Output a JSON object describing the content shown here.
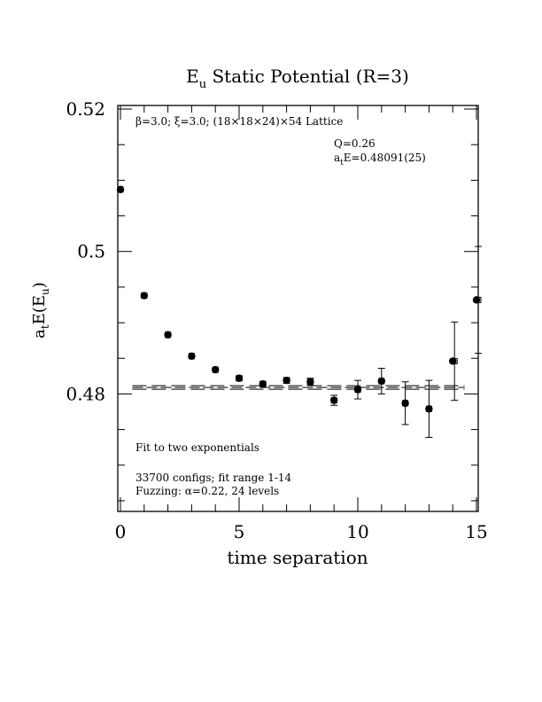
{
  "chart_data": {
    "type": "scatter",
    "title_main": "E",
    "title_sub": "u",
    "title_rest": " Static Potential (R=3)",
    "xlabel": "time separation",
    "ylabel_a": "a",
    "ylabel_t": "t",
    "ylabel_mid": "E(E",
    "ylabel_u": "u",
    "ylabel_end": ")",
    "xlim": [
      0,
      15
    ],
    "ylim": [
      0.4635,
      0.5205
    ],
    "x_ticks": [
      0,
      5,
      10,
      15
    ],
    "x_tick_labels": [
      "0",
      "5",
      "10",
      "15"
    ],
    "y_ticks": [
      0.48,
      0.5,
      0.52
    ],
    "y_tick_labels": [
      "0.48",
      "0.5",
      "0.52"
    ],
    "grid": false,
    "annotations": {
      "lattice": "β=3.0; ξ=3.0; (18×18×24)×54 Lattice",
      "q": "Q=0.26",
      "fit_a": "a",
      "fit_t": "t",
      "fit_rest": "E=0.48091(25)",
      "fit_type": "Fit to two exponentials",
      "configs": "33700 configs; fit range 1-14",
      "fuzzing": "Fuzzing: α=0.22, 24 levels"
    },
    "fit": {
      "value": 0.48091,
      "error": 0.00025,
      "x_range": [
        0.5,
        14.5
      ]
    },
    "points": [
      {
        "x": 0,
        "y": 0.5087,
        "err": 0.00015
      },
      {
        "x": 1,
        "y": 0.4938,
        "err": 0.00015
      },
      {
        "x": 2,
        "y": 0.4883,
        "err": 0.0002
      },
      {
        "x": 3,
        "y": 0.4853,
        "err": 0.0002
      },
      {
        "x": 4,
        "y": 0.4834,
        "err": 0.0002
      },
      {
        "x": 5,
        "y": 0.4822,
        "err": 0.0003
      },
      {
        "x": 6,
        "y": 0.4814,
        "err": 0.0003
      },
      {
        "x": 7,
        "y": 0.4819,
        "err": 0.0004
      },
      {
        "x": 8,
        "y": 0.4817,
        "err": 0.0005
      },
      {
        "x": 9,
        "y": 0.4791,
        "err": 0.0007
      },
      {
        "x": 10,
        "y": 0.4806,
        "err": 0.0013
      },
      {
        "x": 11,
        "y": 0.4818,
        "err": 0.0018
      },
      {
        "x": 12,
        "y": 0.4787,
        "err": 0.003
      },
      {
        "x": 13,
        "y": 0.4779,
        "err": 0.004
      },
      {
        "x": 14,
        "y": 0.4846,
        "err": 0.0055
      },
      {
        "x": 15,
        "y": 0.4932,
        "err": 0.0075
      }
    ]
  }
}
